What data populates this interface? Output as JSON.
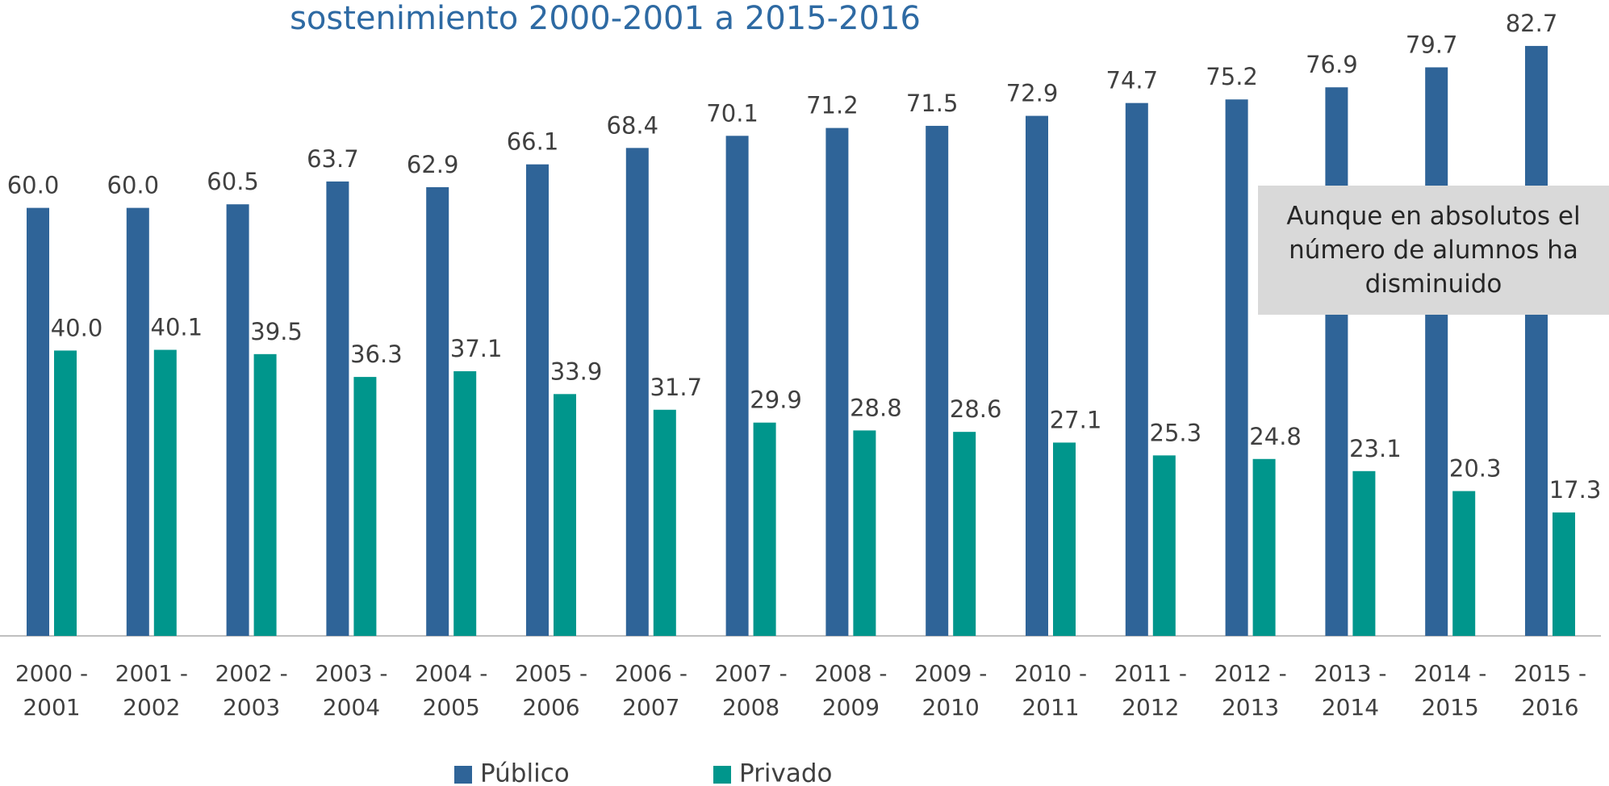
{
  "chart_data": {
    "type": "bar",
    "title": "sostenimiento 2000-2001 a 2015-2016",
    "annotation": "Aunque en absolutos el número de alumnos ha disminuido",
    "categories": [
      "2000 - 2001",
      "2001 - 2002",
      "2002 - 2003",
      "2003 - 2004",
      "2004 - 2005",
      "2005 - 2006",
      "2006 - 2007",
      "2007 - 2008",
      "2008 - 2009",
      "2009 - 2010",
      "2010 - 2011",
      "2011 - 2012",
      "2012 - 2013",
      "2013 - 2014",
      "2014 - 2015",
      "2015 - 2016"
    ],
    "series": [
      {
        "name": "Público",
        "color": "#2f6498",
        "values": [
          60.0,
          60.0,
          60.5,
          63.7,
          62.9,
          66.1,
          68.4,
          70.1,
          71.2,
          71.5,
          72.9,
          74.7,
          75.2,
          76.9,
          79.7,
          82.7
        ],
        "value_labels": [
          "60.0",
          "60.0",
          "60.5",
          "63.7",
          "62.9",
          "66.1",
          "68.4",
          "70.1",
          "71.2",
          "71.5",
          "72.9",
          "74.7",
          "75.2",
          "76.9",
          "79.7",
          "82.7"
        ]
      },
      {
        "name": "Privado",
        "color": "#00968c",
        "values": [
          40.0,
          40.1,
          39.5,
          36.3,
          37.1,
          33.9,
          31.7,
          29.9,
          28.8,
          28.6,
          27.1,
          25.3,
          24.8,
          23.1,
          20.3,
          17.3
        ],
        "value_labels": [
          "40.0",
          "40.1",
          "39.5",
          "36.3",
          "37.1",
          "33.9",
          "31.7",
          "29.9",
          "28.8",
          "28.6",
          "27.1",
          "25.3",
          "24.8",
          "23.1",
          "20.3",
          "17.3"
        ]
      }
    ],
    "ylim": [
      0,
      85
    ],
    "grid": false,
    "legend": "bottom"
  }
}
